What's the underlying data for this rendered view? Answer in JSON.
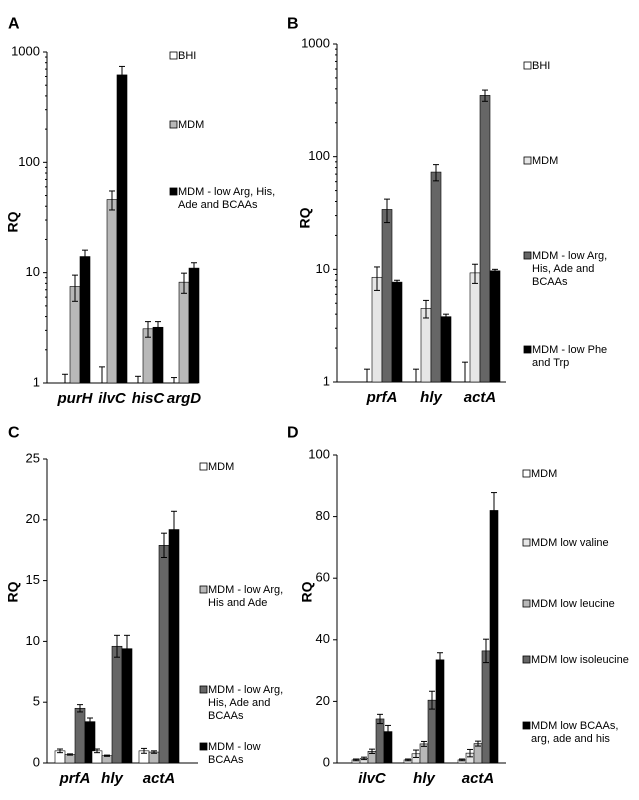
{
  "chart_data": [
    {
      "panel": "A",
      "type": "bar",
      "scale": "log",
      "ylabel": "RQ",
      "ylim": [
        1,
        1000
      ],
      "yticks": [
        "1",
        "10",
        "100",
        "1000"
      ],
      "categories": [
        "purH",
        "ilvC",
        "hisC",
        "argD"
      ],
      "series": [
        {
          "name": "BHI",
          "color": "#ffffff",
          "values": [
            1,
            1,
            1,
            1
          ],
          "errors": [
            0.2,
            0.4,
            0.15,
            0.12
          ]
        },
        {
          "name": "MDM",
          "color": "#b8b8b8",
          "values": [
            7.5,
            46,
            3.1,
            8.2
          ],
          "errors": [
            2.0,
            9,
            0.5,
            1.7
          ]
        },
        {
          "name": "MDM - low Arg, His, Ade and BCAAs",
          "color": "#000000",
          "values": [
            14,
            620,
            3.2,
            11
          ],
          "errors": [
            2.0,
            120,
            0.4,
            1.3
          ]
        }
      ]
    },
    {
      "panel": "B",
      "type": "bar",
      "scale": "log",
      "ylabel": "RQ",
      "ylim": [
        1,
        1000
      ],
      "yticks": [
        "1",
        "10",
        "100",
        "1000"
      ],
      "categories": [
        "prfA",
        "hly",
        "actA"
      ],
      "series": [
        {
          "name": "BHI",
          "color": "#ffffff",
          "values": [
            1,
            1,
            1
          ],
          "errors": [
            0.3,
            0.3,
            0.5
          ]
        },
        {
          "name": "MDM",
          "color": "#e6e6e6",
          "values": [
            8.5,
            4.5,
            9.3
          ],
          "errors": [
            2.0,
            0.8,
            1.8
          ]
        },
        {
          "name": "MDM - low Arg, His, Ade and BCAAs",
          "color": "#666666",
          "values": [
            34,
            73,
            350
          ],
          "errors": [
            8,
            12,
            40
          ]
        },
        {
          "name": "MDM - low Phe and Trp",
          "color": "#000000",
          "values": [
            7.7,
            3.8,
            9.7
          ],
          "errors": [
            0.3,
            0.2,
            0.3
          ]
        }
      ]
    },
    {
      "panel": "C",
      "type": "bar",
      "scale": "linear",
      "ylabel": "RQ",
      "ylim": [
        0,
        25
      ],
      "yticks": [
        "0",
        "5",
        "10",
        "15",
        "20",
        "25"
      ],
      "categories": [
        "prfA",
        "hly",
        "actA"
      ],
      "series": [
        {
          "name": "MDM",
          "color": "#ffffff",
          "values": [
            1.0,
            1.0,
            1.0
          ],
          "errors": [
            0.15,
            0.15,
            0.2
          ]
        },
        {
          "name": "MDM - low Arg, His and Ade",
          "color": "#b8b8b8",
          "values": [
            0.7,
            0.6,
            0.9
          ],
          "errors": [
            0.05,
            0.05,
            0.1
          ]
        },
        {
          "name": "MDM - low Arg, His, Ade and BCAAs",
          "color": "#666666",
          "values": [
            4.5,
            9.6,
            17.9
          ],
          "errors": [
            0.3,
            0.9,
            1.0
          ]
        },
        {
          "name": "MDM - low BCAAs",
          "color": "#000000",
          "values": [
            3.4,
            9.4,
            19.2
          ],
          "errors": [
            0.3,
            1.1,
            1.5
          ]
        }
      ]
    },
    {
      "panel": "D",
      "type": "bar",
      "scale": "linear",
      "ylabel": "RQ",
      "ylim": [
        0,
        100
      ],
      "yticks": [
        "0",
        "20",
        "40",
        "60",
        "80",
        "100"
      ],
      "categories": [
        "ilvC",
        "hly",
        "actA"
      ],
      "series": [
        {
          "name": "MDM",
          "color": "#ffffff",
          "values": [
            1.0,
            1.0,
            1.0
          ],
          "errors": [
            0.3,
            0.3,
            0.3
          ]
        },
        {
          "name": "MDM low valine",
          "color": "#e6e6e6",
          "values": [
            1.5,
            3.0,
            3.2
          ],
          "errors": [
            0.4,
            1.2,
            1.2
          ]
        },
        {
          "name": "MDM low leucine",
          "color": "#b8b8b8",
          "values": [
            3.8,
            6.2,
            6.3
          ],
          "errors": [
            0.7,
            0.8,
            0.8
          ]
        },
        {
          "name": "MDM low isoleucine",
          "color": "#666666",
          "values": [
            14.3,
            20.4,
            36.4
          ],
          "errors": [
            1.5,
            2.9,
            3.8
          ]
        },
        {
          "name": "MDM low BCAAs, arg, ade and his",
          "color": "#000000",
          "values": [
            10.2,
            33.5,
            82
          ],
          "errors": [
            2.0,
            2.3,
            5.8
          ]
        }
      ]
    }
  ]
}
